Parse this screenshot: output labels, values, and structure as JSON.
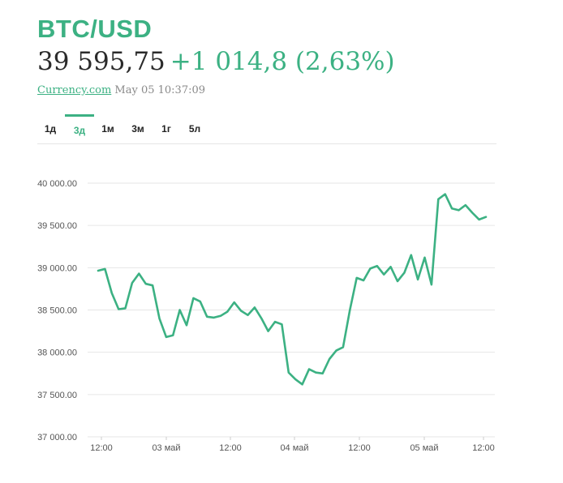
{
  "header": {
    "pair": "BTC/USD",
    "price": "39 595,75",
    "change": "+1 014,8 (2,63%)",
    "source": "Currency.com",
    "timestamp": "May 05 10:37:09"
  },
  "tabs": [
    {
      "label": "1д",
      "active": false
    },
    {
      "label": "3д",
      "active": true
    },
    {
      "label": "1м",
      "active": false
    },
    {
      "label": "3м",
      "active": false
    },
    {
      "label": "1г",
      "active": false
    },
    {
      "label": "5л",
      "active": false
    }
  ],
  "colors": {
    "accent": "#3cb183",
    "grid": "#e6e6e6",
    "text": "#2b2b2b"
  },
  "chart_data": {
    "type": "line",
    "title": "",
    "xlabel": "",
    "ylabel": "",
    "ylim": [
      37000,
      40000
    ],
    "y_ticks": [
      "40 000.00",
      "39 500.00",
      "39 000.00",
      "38 500.00",
      "38 000.00",
      "37 500.00",
      "37 000.00"
    ],
    "x_ticks": [
      "12:00",
      "03 май",
      "12:00",
      "04 май",
      "12:00",
      "05 май",
      "12:00"
    ],
    "grid": true,
    "series": [
      {
        "values": [
          38965,
          38985,
          38700,
          38510,
          38520,
          38820,
          38930,
          38810,
          38790,
          38400,
          38180,
          38200,
          38500,
          38320,
          38640,
          38600,
          38420,
          38410,
          38430,
          38480,
          38590,
          38490,
          38440,
          38530,
          38400,
          38250,
          38360,
          38330,
          37760,
          37680,
          37620,
          37800,
          37760,
          37750,
          37920,
          38020,
          38060,
          38500,
          38880,
          38850,
          38990,
          39020,
          38920,
          39010,
          38840,
          38940,
          39150,
          38860,
          39120,
          38800,
          39810,
          39870,
          39700,
          39680,
          39740,
          39650,
          39570,
          39600
        ]
      }
    ]
  }
}
